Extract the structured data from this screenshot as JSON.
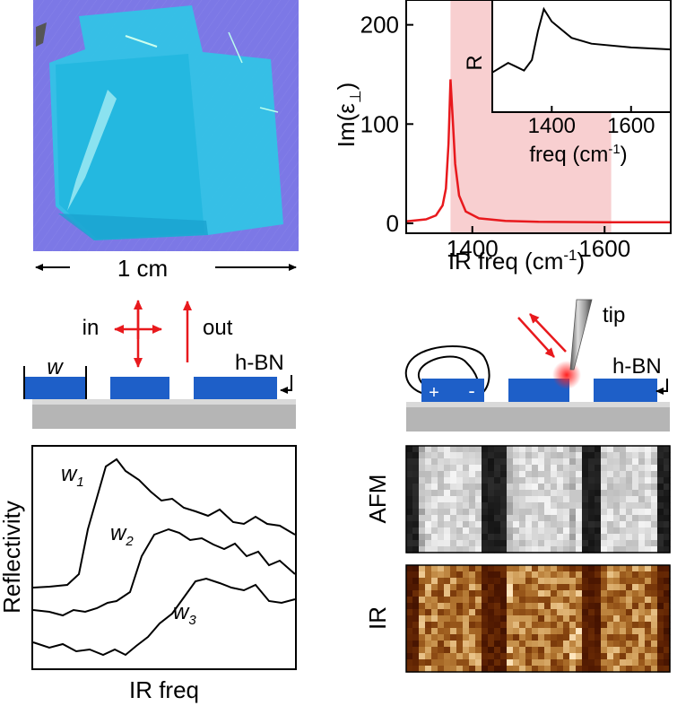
{
  "photo": {
    "scale_label": "1 cm",
    "colors": {
      "background": "#7c78e6",
      "flake": "#2fc7e6",
      "flake_dark": "#1aa9d2"
    }
  },
  "spectrum": {
    "ylabel_main": "Im(ε",
    "ylabel_sub": "⊥",
    "ylabel_close": ")",
    "xlabel_main": "IR freq (cm",
    "xlabel_sup": "-1",
    "xlabel_close": ")",
    "yticks": [
      "0",
      "100",
      "200"
    ],
    "xticks": [
      "1400",
      "1600"
    ],
    "inset": {
      "ylabel": "R",
      "xticks": [
        "1400",
        "1600"
      ],
      "xlabel_main": "freq (cm",
      "xlabel_sup": "-1",
      "xlabel_close": ")"
    },
    "colors": {
      "curve": "#e8191d",
      "band": "#f8cfd0"
    }
  },
  "schematic_left": {
    "in_label": "in",
    "out_label": "out",
    "width_label": "w",
    "hbn_label": "h-BN"
  },
  "schematic_right": {
    "tip_label": "tip",
    "hbn_label": "h-BN",
    "plus_label": "+",
    "minus_label": "-"
  },
  "reflectivity": {
    "ylabel": "Reflectivity",
    "xlabel": "IR freq",
    "curve_labels": [
      {
        "main": "w",
        "sub": "1"
      },
      {
        "main": "w",
        "sub": "2"
      },
      {
        "main": "w",
        "sub": "3"
      }
    ]
  },
  "maps": {
    "afm_label": "AFM",
    "ir_label": "IR"
  },
  "colors": {
    "ribbon": "#1e5fc8",
    "substrate": "#b5b5b5",
    "arrow": "#e8191d"
  },
  "chart_data": {
    "type": "line",
    "title": "",
    "xlabel": "IR freq (cm-1)",
    "ylabel": "Im(ε⊥)",
    "xlim": [
      1300,
      1700
    ],
    "ylim": [
      -10,
      225
    ],
    "x_ticks": [
      1400,
      1600
    ],
    "y_ticks": [
      0,
      100,
      200
    ],
    "highlighted_band": [
      1367,
      1610
    ],
    "series": [
      {
        "x": [
          1300,
          1330,
          1345,
          1355,
          1360,
          1364,
          1367,
          1370,
          1374,
          1380,
          1390,
          1410,
          1450,
          1500,
          1600,
          1700
        ],
        "values": [
          2,
          4,
          8,
          18,
          35,
          80,
          145,
          110,
          60,
          28,
          12,
          5,
          2.5,
          1.5,
          1,
          1
        ]
      }
    ],
    "inset": {
      "type": "line",
      "ylabel": "R",
      "xlabel": "freq (cm-1)",
      "xlim": [
        1250,
        1700
      ],
      "x_ticks": [
        1400,
        1600
      ],
      "series": [
        {
          "x": [
            1250,
            1290,
            1310,
            1330,
            1350,
            1365,
            1380,
            1400,
            1450,
            1500,
            1600,
            1700
          ],
          "values": [
            0.32,
            0.42,
            0.38,
            0.34,
            0.45,
            0.75,
            0.98,
            0.85,
            0.68,
            0.62,
            0.58,
            0.56
          ]
        }
      ]
    }
  }
}
